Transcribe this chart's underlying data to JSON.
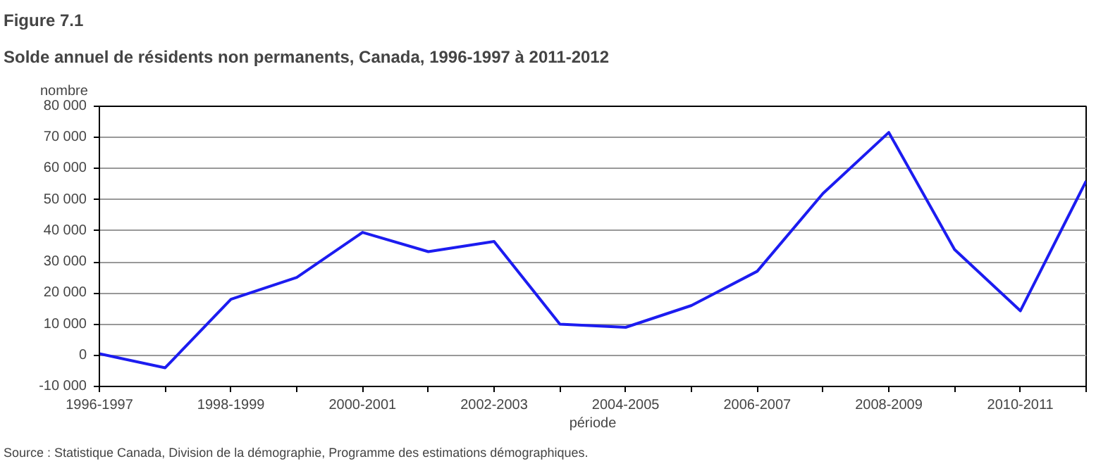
{
  "chart_data": {
    "type": "line",
    "title": "Figure 7.1",
    "subtitle": "Solde annuel de résidents non permanents, Canada, 1996-1997 à 2011-2012",
    "ylabel": "nombre",
    "xlabel": "période",
    "annotations": [
      "Source : Statistique Canada, Division de la démographie, Programme des estimations démographiques."
    ],
    "categories": [
      "1996-1997",
      null,
      "1998-1999",
      null,
      "2000-2001",
      null,
      "2002-2003",
      null,
      "2004-2005",
      null,
      "2006-2007",
      null,
      "2008-2009",
      null,
      "2010-2011",
      null
    ],
    "series": [
      {
        "color": "#1c1cf0",
        "values": [
          500,
          -4000,
          18000,
          25000,
          39500,
          33300,
          36600,
          10000,
          9000,
          16000,
          27000,
          52000,
          71600,
          34000,
          14300,
          56000
        ]
      }
    ],
    "ylim": [
      -10000,
      80000
    ],
    "yticks": [
      {
        "value": -10000,
        "label": "-10 000"
      },
      0,
      {
        "value": 10000,
        "label": "10 000"
      },
      {
        "value": 20000,
        "label": "20 000"
      },
      {
        "value": 30000,
        "label": "30 000"
      },
      {
        "value": 40000,
        "label": "40 000"
      },
      {
        "value": 50000,
        "label": "50 000"
      },
      {
        "value": 60000,
        "label": "60 000"
      },
      {
        "value": 70000,
        "label": "70 000"
      },
      {
        "value": 80000,
        "label": "80 000"
      }
    ],
    "grid": "y",
    "line_style": "solid"
  }
}
